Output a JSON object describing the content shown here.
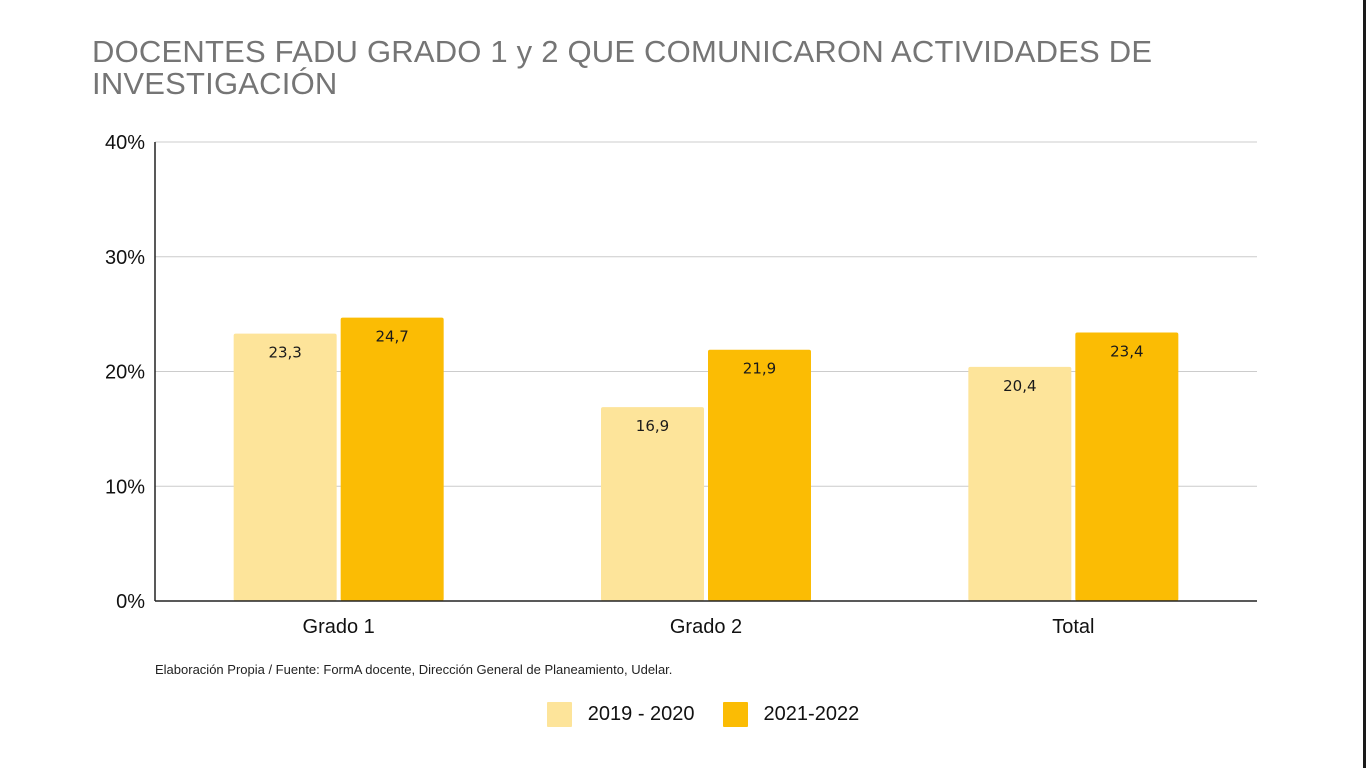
{
  "chart_data": {
    "type": "bar",
    "title": "DOCENTES FADU GRADO 1 y 2 QUE COMUNICARON ACTIVIDADES DE INVESTIGACIÓN",
    "categories": [
      "Grado 1",
      "Grado 2",
      "Total"
    ],
    "series": [
      {
        "name": "2019 - 2020",
        "values": [
          23.3,
          16.9,
          20.4
        ],
        "labels": [
          "23,3",
          "16,9",
          "20,4"
        ],
        "color": "#FDE49A"
      },
      {
        "name": "2021-2022",
        "values": [
          24.7,
          21.9,
          23.4
        ],
        "labels": [
          "24,7",
          "21,9",
          "23,4"
        ],
        "color": "#FBBC04"
      }
    ],
    "ylim": [
      0,
      40
    ],
    "yticks": [
      0,
      10,
      20,
      30,
      40
    ],
    "ytick_labels": [
      "0%",
      "10%",
      "20%",
      "30%",
      "40%"
    ],
    "xlabel": "",
    "ylabel": "",
    "grid": true,
    "legend_position": "bottom"
  },
  "source_note": "Elaboración Propia / Fuente: FormA docente, Dirección General de Planeamiento, Udelar."
}
